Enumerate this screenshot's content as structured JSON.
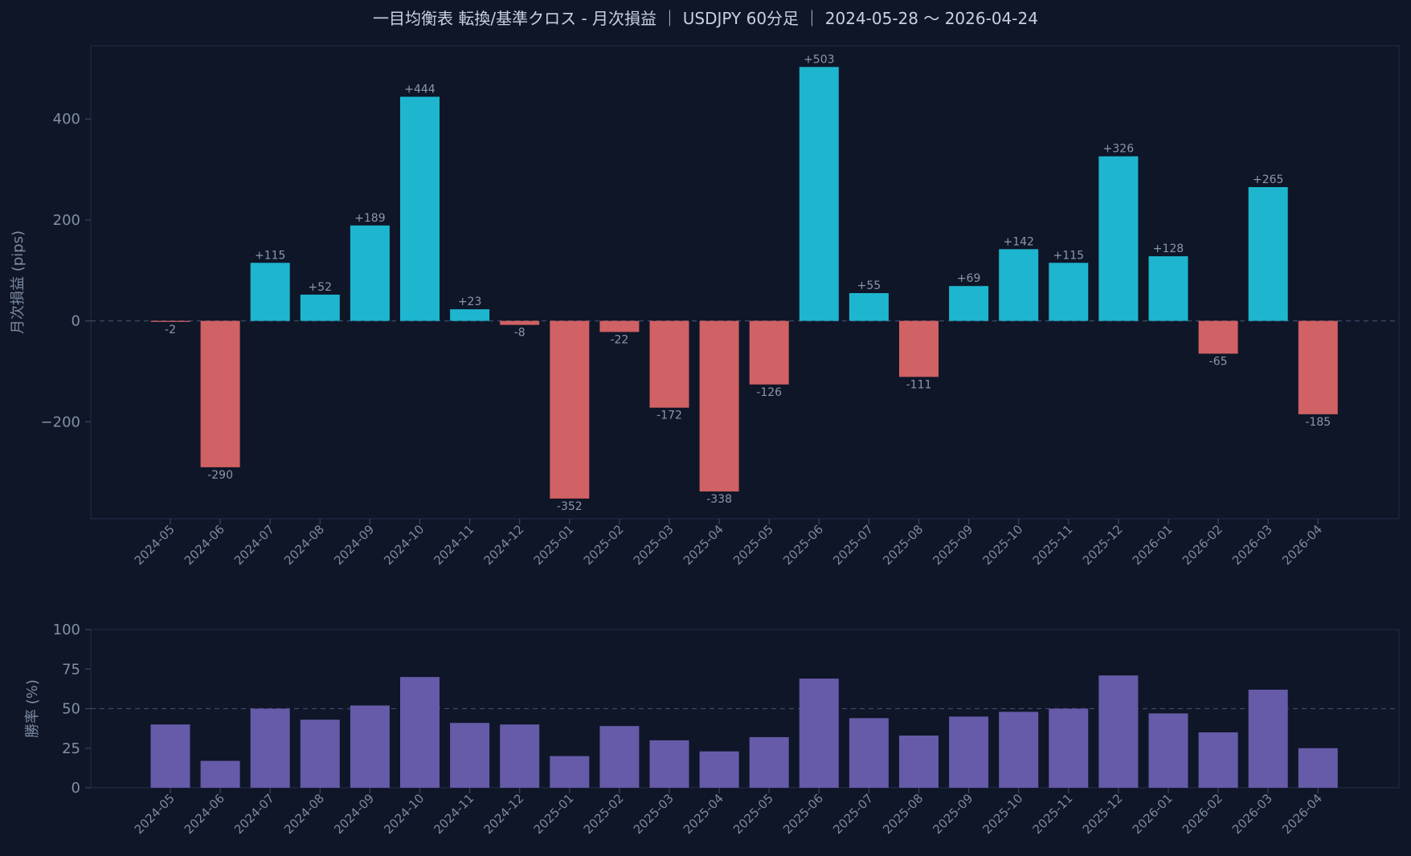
{
  "title": "一目均衡表 転換/基準クロス - 月次損益 ｜ USDJPY 60分足 ｜ 2024-05-28 〜 2026-04-24",
  "colors": {
    "background": "#0e1628",
    "positive": "#1eb6cf",
    "negative": "#d06164",
    "winrate": "#665ba8",
    "frame": "#1f2c42"
  },
  "chart_data": [
    {
      "type": "bar",
      "ylabel": "月次損益 (pips)",
      "ylim": [
        -392,
        545
      ],
      "yticks": [
        -200,
        0,
        200,
        400
      ],
      "ytick_labels": [
        "−200",
        "0",
        "200",
        "400"
      ],
      "reference_line": 0,
      "categories": [
        "2024-05",
        "2024-06",
        "2024-07",
        "2024-08",
        "2024-09",
        "2024-10",
        "2024-11",
        "2024-12",
        "2025-01",
        "2025-02",
        "2025-03",
        "2025-04",
        "2025-05",
        "2025-06",
        "2025-07",
        "2025-08",
        "2025-09",
        "2025-10",
        "2025-11",
        "2025-12",
        "2026-01",
        "2026-02",
        "2026-03",
        "2026-04"
      ],
      "values": [
        -2,
        -290,
        115,
        52,
        189,
        444,
        23,
        -8,
        -352,
        -22,
        -172,
        -338,
        -126,
        503,
        55,
        -111,
        69,
        142,
        115,
        326,
        128,
        -65,
        265,
        -185
      ],
      "data_labels": [
        "-2",
        "-290",
        "+115",
        "+52",
        "+189",
        "+444",
        "+23",
        "-8",
        "-352",
        "-22",
        "-172",
        "-338",
        "-126",
        "+503",
        "+55",
        "-111",
        "+69",
        "+142",
        "+115",
        "+326",
        "+128",
        "-65",
        "+265",
        "-185"
      ]
    },
    {
      "type": "bar",
      "ylabel": "勝率 (%)",
      "ylim": [
        0,
        100
      ],
      "yticks": [
        0,
        25,
        50,
        75,
        100
      ],
      "ytick_labels": [
        "0",
        "25",
        "50",
        "75",
        "100"
      ],
      "reference_line": 50,
      "categories": [
        "2024-05",
        "2024-06",
        "2024-07",
        "2024-08",
        "2024-09",
        "2024-10",
        "2024-11",
        "2024-12",
        "2025-01",
        "2025-02",
        "2025-03",
        "2025-04",
        "2025-05",
        "2025-06",
        "2025-07",
        "2025-08",
        "2025-09",
        "2025-10",
        "2025-11",
        "2025-12",
        "2026-01",
        "2026-02",
        "2026-03",
        "2026-04"
      ],
      "values": [
        40,
        17,
        50,
        43,
        52,
        70,
        41,
        40,
        20,
        39,
        30,
        23,
        32,
        69,
        44,
        33,
        45,
        48,
        50,
        71,
        47,
        35,
        62,
        25
      ]
    }
  ]
}
